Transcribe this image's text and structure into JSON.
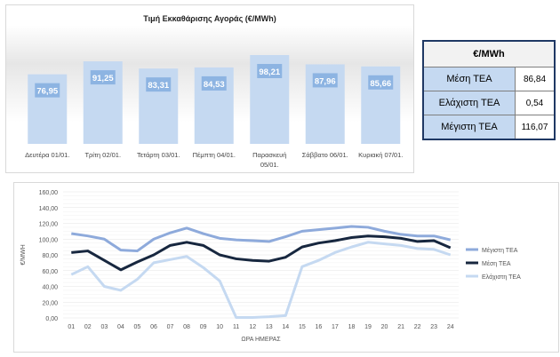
{
  "chart_data": [
    {
      "type": "bar",
      "title": "Τιμή Εκκαθάρισης Αγοράς (€/MWh)",
      "categories": [
        "Δευτέρα 01/01.",
        "Τρίτη 02/01.",
        "Τετάρτη 03/01.",
        "Πέμπτη 04/01.",
        "Παρασκευή 05/01.",
        "Σάββατο 06/01.",
        "Κυριακή 07/01."
      ],
      "values": [
        76.95,
        91.25,
        83.31,
        84.53,
        98.21,
        87.96,
        85.66
      ],
      "labels": [
        "76,95",
        "91,25",
        "83,31",
        "84,53",
        "98,21",
        "87,96",
        "85,66"
      ],
      "color": "#c5d9f1",
      "label_bg": "#8db4e2"
    },
    {
      "type": "line",
      "xlabel": "ΩΡΑ ΗΜΕΡΑΣ",
      "ylabel": "€/MWH",
      "ylim": [
        0,
        160
      ],
      "yticks": [
        "0,00",
        "20,00",
        "40,00",
        "60,00",
        "80,00",
        "100,00",
        "120,00",
        "140,00",
        "160,00"
      ],
      "x": [
        "01",
        "02",
        "03",
        "04",
        "05",
        "06",
        "07",
        "08",
        "09",
        "10",
        "11",
        "12",
        "13",
        "14",
        "15",
        "16",
        "17",
        "18",
        "19",
        "20",
        "21",
        "22",
        "23",
        "24"
      ],
      "legend": "right",
      "grid": true,
      "series": [
        {
          "name": "Μέγιστη ΤΕΑ",
          "color": "#8eaadb",
          "values": [
            107,
            104,
            100,
            86,
            85,
            100,
            108,
            114,
            107,
            101,
            99,
            98,
            97,
            103,
            110,
            112,
            114,
            116,
            115,
            110,
            106,
            104,
            104,
            99
          ]
        },
        {
          "name": "Μέση ΤΕΑ",
          "color": "#17273f",
          "values": [
            83,
            85,
            73,
            61,
            71,
            80,
            92,
            96,
            92,
            80,
            75,
            73,
            72,
            77,
            90,
            95,
            98,
            102,
            104,
            103,
            101,
            97,
            98,
            89
          ]
        },
        {
          "name": "Ελάχιστη ΤΕΑ",
          "color": "#c5d9f1",
          "values": [
            55,
            65,
            40,
            35,
            49,
            70,
            74,
            78,
            64,
            47,
            0.5,
            0.5,
            1.5,
            3,
            65,
            73,
            83,
            90,
            96,
            94,
            92,
            88,
            87,
            80
          ]
        }
      ]
    }
  ],
  "table": {
    "header": "€/MWh",
    "rows": [
      {
        "label": "Μέση ΤΕΑ",
        "value": "86,84"
      },
      {
        "label": "Ελάχιστη ΤΕΑ",
        "value": "0,54"
      },
      {
        "label": "Μέγιστη ΤΕΑ",
        "value": "116,07"
      }
    ]
  }
}
